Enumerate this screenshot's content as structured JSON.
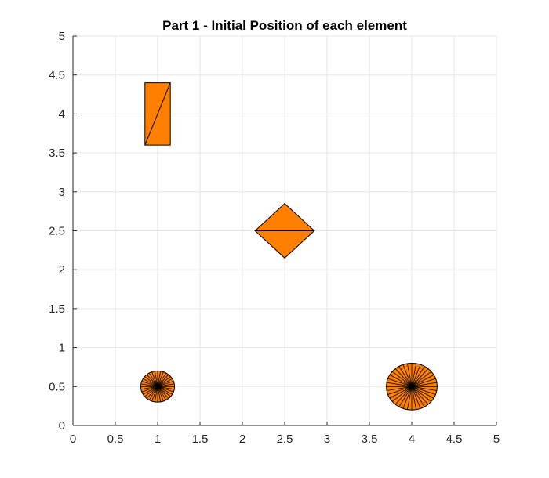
{
  "chart_data": {
    "type": "scatter",
    "title": "Part 1 - Initial Position of each element",
    "xlabel": "",
    "ylabel": "",
    "xlim": [
      0,
      5
    ],
    "ylim": [
      0,
      5
    ],
    "xticks": [
      0,
      0.5,
      1,
      1.5,
      2,
      2.5,
      3,
      3.5,
      4,
      4.5,
      5
    ],
    "yticks": [
      0,
      0.5,
      1,
      1.5,
      2,
      2.5,
      3,
      3.5,
      4,
      4.5,
      5
    ],
    "xtick_labels": [
      "0",
      "0.5",
      "1",
      "1.5",
      "2",
      "2.5",
      "3",
      "3.5",
      "4",
      "4.5",
      "5"
    ],
    "ytick_labels": [
      "0",
      "0.5",
      "1",
      "1.5",
      "2",
      "2.5",
      "3",
      "3.5",
      "4",
      "4.5",
      "5"
    ],
    "grid": true,
    "colors": {
      "fill": "#ff8000",
      "edge": "#000000",
      "grid": "#e6e6e6",
      "axis": "#262626"
    },
    "elements": [
      {
        "shape": "rectangle",
        "center": [
          1,
          4
        ],
        "corners": [
          [
            0.85,
            3.6
          ],
          [
            1.15,
            3.6
          ],
          [
            1.15,
            4.4
          ],
          [
            0.85,
            4.4
          ]
        ],
        "internal_lines": [
          [
            [
              0.85,
              3.6
            ],
            [
              1.15,
              4.4
            ]
          ]
        ]
      },
      {
        "shape": "diamond",
        "center": [
          2.5,
          2.5
        ],
        "corners": [
          [
            2.15,
            2.5
          ],
          [
            2.5,
            2.85
          ],
          [
            2.85,
            2.5
          ],
          [
            2.5,
            2.15
          ]
        ],
        "internal_lines": [
          [
            [
              2.15,
              2.5
            ],
            [
              2.85,
              2.5
            ]
          ]
        ]
      },
      {
        "shape": "circle",
        "center": [
          1,
          0.5
        ],
        "radius_x": 0.2,
        "radius_y": 0.2,
        "spokes": 36
      },
      {
        "shape": "circle",
        "center": [
          4,
          0.5
        ],
        "radius_x": 0.3,
        "radius_y": 0.3,
        "spokes": 36
      }
    ]
  }
}
